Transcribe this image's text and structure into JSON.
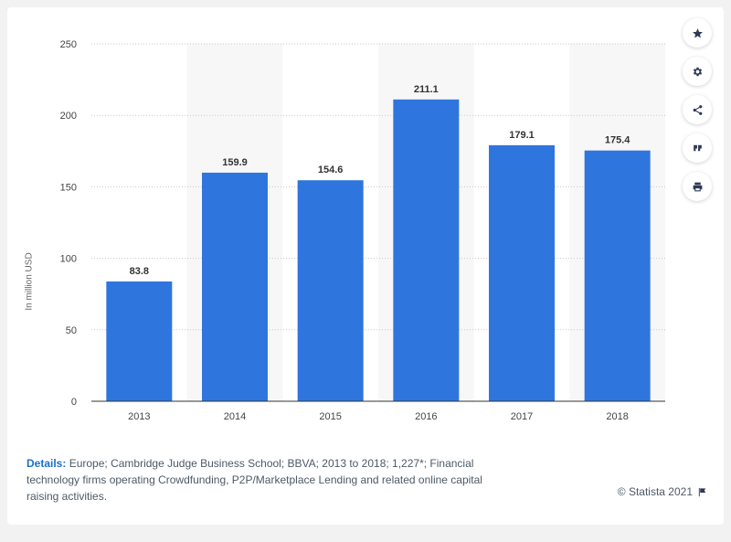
{
  "chart_data": {
    "type": "bar",
    "categories": [
      "2013",
      "2014",
      "2015",
      "2016",
      "2017",
      "2018"
    ],
    "values": [
      83.8,
      159.9,
      154.6,
      211.1,
      179.1,
      175.4
    ],
    "value_labels": [
      "83.8",
      "159.9",
      "154.6",
      "211.1",
      "179.1",
      "175.4"
    ],
    "title": "",
    "xlabel": "",
    "ylabel": "In million USD",
    "ylim": [
      0,
      250
    ],
    "yticks": [
      0,
      50,
      100,
      150,
      200,
      250
    ],
    "grid": true,
    "bar_color": "#2f75de"
  },
  "details": {
    "label": "Details:",
    "text": "Europe; Cambridge Judge Business School; BBVA; 2013 to 2018; 1,227*; Financial technology firms operating Crowdfunding, P2P/Marketplace Lending and related online capital raising activities."
  },
  "credit": "© Statista 2021",
  "sidebar": {
    "icons": [
      "star-icon",
      "gear-icon",
      "share-icon",
      "quote-icon",
      "print-icon"
    ]
  }
}
